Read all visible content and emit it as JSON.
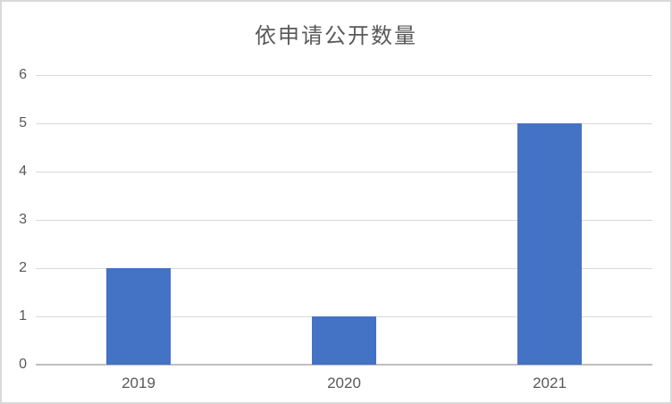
{
  "chart_data": {
    "type": "bar",
    "title": "依申请公开数量",
    "categories": [
      "2019",
      "2020",
      "2021"
    ],
    "values": [
      2,
      1,
      5
    ],
    "ylim": [
      0,
      6
    ],
    "ytick_interval": 1,
    "yticks": [
      0,
      1,
      2,
      3,
      4,
      5,
      6
    ],
    "xlabel": "",
    "ylabel": "",
    "grid": true,
    "legend": "none",
    "colors": {
      "bar": "#4472C4",
      "title_text": "#595959",
      "tick_text": "#595959",
      "gridline": "#D9D9D9",
      "axis_line": "#BFBFBF",
      "card_border": "#D9D9D9",
      "background": "#FFFFFF"
    }
  }
}
